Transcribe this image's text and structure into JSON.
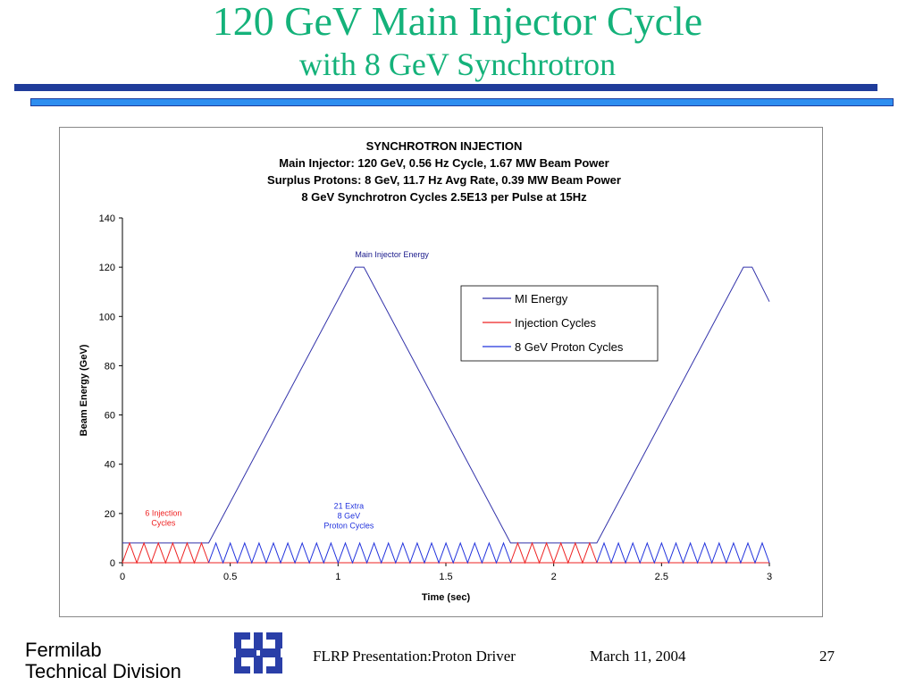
{
  "slide": {
    "title": "120 GeV Main Injector Cycle",
    "subtitle": "with 8 GeV Synchrotron",
    "footer_org_line1": "Fermilab",
    "footer_org_line2": "Technical Division",
    "footer_presentation": "FLRP Presentation:Proton Driver",
    "footer_date": "March 11, 2004",
    "page_number": "27",
    "logo_icon": "fermilab-logo-icon",
    "colors": {
      "title": "#14b27a",
      "bar_dark": "#1f3c9a",
      "bar_light": "#2e8ef0"
    }
  },
  "chart_data": {
    "type": "line",
    "title_lines": [
      "SYNCHROTRON INJECTION",
      "Main  Injector:  120 GeV,  0.56 Hz Cycle,  1.67 MW Beam Power",
      "Surplus Protons:    8 GeV,  11.7 Hz Avg Rate,  0.39 MW Beam Power",
      "8 GeV Synchrotron Cycles 2.5E13 per Pulse at 15Hz"
    ],
    "xlabel": "Time (sec)",
    "ylabel": "Beam Energy (GeV)",
    "xlim": [
      0,
      3
    ],
    "ylim": [
      0,
      140
    ],
    "xticks": [
      "0",
      "0.5",
      "1",
      "1.5",
      "2",
      "2.5",
      "3"
    ],
    "xtick_values": [
      0,
      0.5,
      1,
      1.5,
      2,
      2.5,
      3
    ],
    "yticks": [
      "0",
      "20",
      "40",
      "60",
      "80",
      "100",
      "120",
      "140"
    ],
    "ytick_values": [
      0,
      20,
      40,
      60,
      80,
      100,
      120,
      140
    ],
    "grid": false,
    "legend_position": "top-right",
    "series": [
      {
        "name": "MI Energy",
        "color": "#3333aa",
        "x": [
          0,
          0.4,
          1.08,
          1.12,
          1.8,
          2.2,
          2.88,
          2.92,
          3.0
        ],
        "y": [
          8,
          8,
          120,
          120,
          8,
          8,
          120,
          120,
          106
        ]
      },
      {
        "name": "Injection Cycles",
        "color": "#ee2222",
        "cycles": [
          {
            "start": 0,
            "period": 0.0667,
            "count": 6,
            "peak": 8,
            "base": 0
          },
          {
            "start": 1.8,
            "period": 0.0667,
            "count": 6,
            "peak": 8,
            "base": 0
          }
        ]
      },
      {
        "name": "8 GeV Proton Cycles",
        "color": "#2233dd",
        "cycles": [
          {
            "start": 0.4,
            "period": 0.0667,
            "count": 21,
            "peak": 8,
            "base": 0
          },
          {
            "start": 2.2,
            "period": 0.0667,
            "count": 12,
            "peak": 8,
            "base": 0
          }
        ]
      }
    ],
    "annotations": [
      {
        "text": "Main Injector Energy",
        "x": 1.25,
        "y": 124,
        "color": "#1a1a8c"
      },
      {
        "text": "6 Injection",
        "x": 0.19,
        "y": 19,
        "color": "#ee2222"
      },
      {
        "text": "Cycles",
        "x": 0.19,
        "y": 15,
        "color": "#ee2222"
      },
      {
        "text": "21 Extra",
        "x": 1.05,
        "y": 22,
        "color": "#2233dd"
      },
      {
        "text": "8 GeV",
        "x": 1.05,
        "y": 18,
        "color": "#2233dd"
      },
      {
        "text": "Proton Cycles",
        "x": 1.05,
        "y": 14,
        "color": "#2233dd"
      }
    ]
  }
}
